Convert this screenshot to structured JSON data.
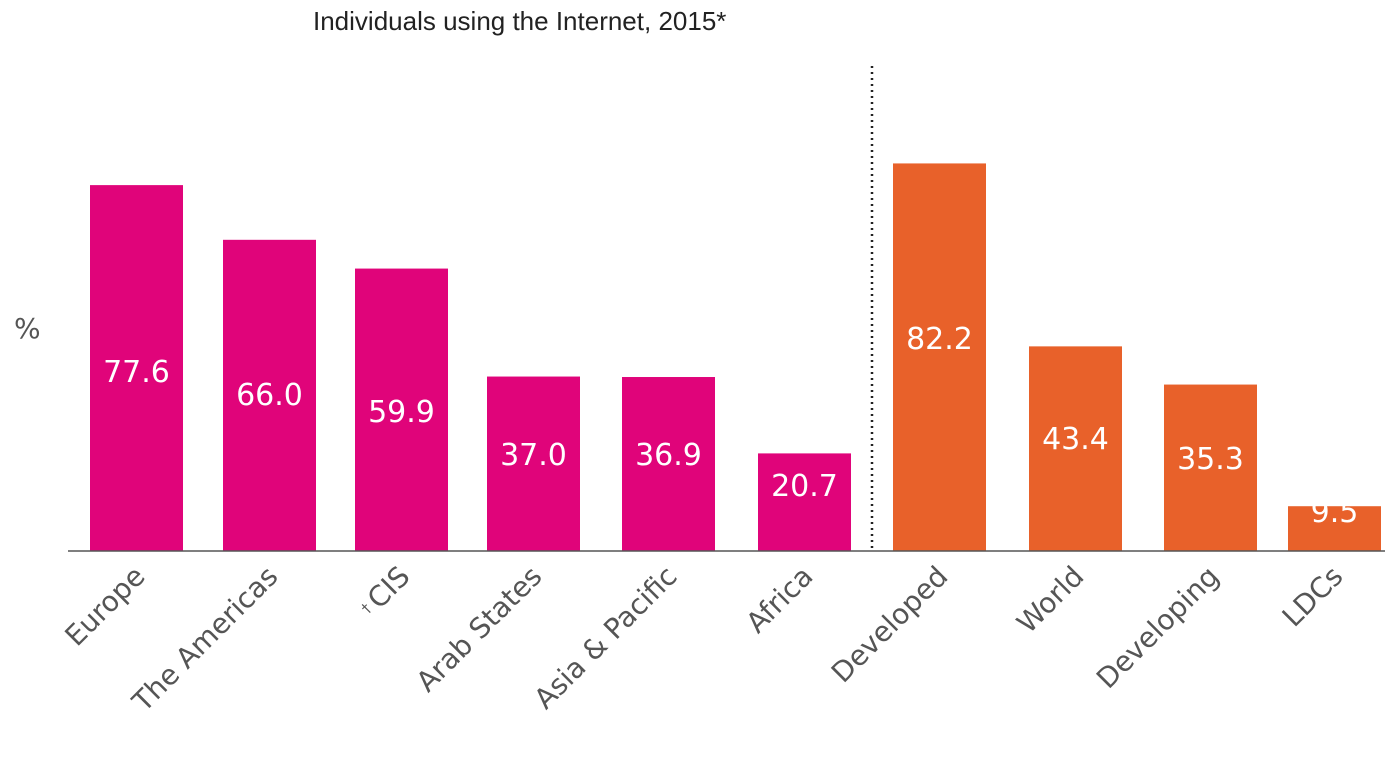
{
  "chart_data": {
    "type": "bar",
    "title": "Individuals using the Internet, 2015*",
    "ylabel": "%",
    "xlabel": "",
    "ylim": [
      0,
      90
    ],
    "grid": false,
    "categories": [
      "Europe",
      "The Americas",
      "CIS",
      "Arab States",
      "Asia & Pacific",
      "Africa",
      "Developed",
      "World",
      "Developing",
      "LDCs"
    ],
    "category_prefixes": [
      "",
      "",
      "†",
      "",
      "",
      "",
      "",
      "",
      "",
      ""
    ],
    "values": [
      77.6,
      66.0,
      59.9,
      37.0,
      36.9,
      20.7,
      82.2,
      43.4,
      35.3,
      9.5
    ],
    "value_labels": [
      "77.6",
      "66.0",
      "59.9",
      "37.0",
      "36.9",
      "20.7",
      "82.2",
      "43.4",
      "35.3",
      "9.5"
    ],
    "groups": [
      {
        "categories": [
          "Europe",
          "The Americas",
          "CIS",
          "Arab States",
          "Asia & Pacific",
          "Africa"
        ],
        "color": "#E0047A"
      },
      {
        "categories": [
          "Developed",
          "World",
          "Developing",
          "LDCs"
        ],
        "color": "#E8612A"
      }
    ],
    "separator": "dotted line between Africa and Developed"
  },
  "colors": {
    "regions": "#E0047A",
    "development": "#E8612A",
    "bar_label": "#ffffff",
    "axis": "#555555"
  }
}
